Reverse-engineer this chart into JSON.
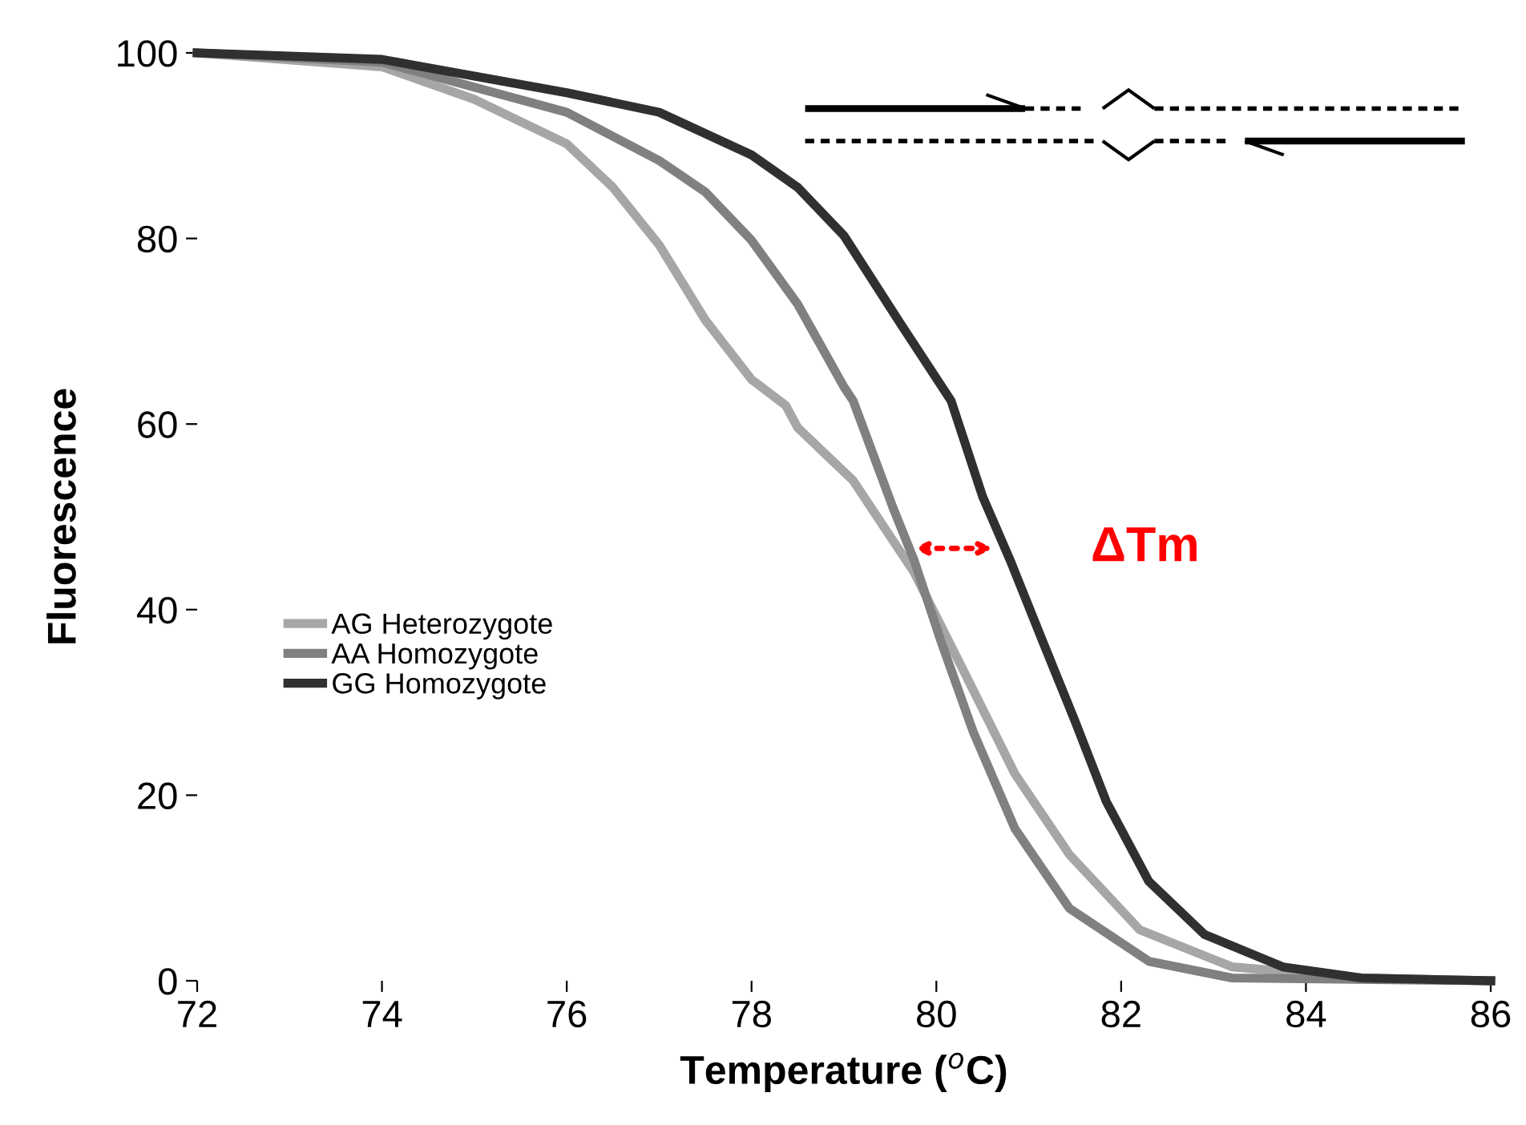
{
  "chart_data": {
    "type": "line",
    "xlabel": "Temperature ($^{o}$C)",
    "ylabel": "Fluorescence",
    "xlim": [
      72,
      86
    ],
    "ylim": [
      0,
      100
    ],
    "xticks": [
      72,
      74,
      76,
      78,
      80,
      82,
      84,
      86
    ],
    "yticks": [
      0,
      20,
      40,
      60,
      80,
      100
    ],
    "grid": false,
    "legend": "left",
    "marker": "none",
    "line_style": "solid",
    "annotations": [
      {
        "text": "ΔTm",
        "x": 80.66,
        "y": 46.6
      }
    ],
    "series": [
      {
        "name": "AG Heterozygote",
        "color": "#a6a6a6",
        "x": [
          72,
          74,
          75,
          76,
          76.5,
          77,
          77.5,
          78,
          78.37,
          78.5,
          79.1,
          79.76,
          80.28,
          80.85,
          81.44,
          82.2,
          83.2,
          84.6,
          86
        ],
        "values": [
          100,
          98.5,
          95,
          90.2,
          85.5,
          79.3,
          71.2,
          64.8,
          62,
          59.6,
          53.9,
          44,
          33.7,
          22.3,
          13.6,
          5.5,
          1.5,
          0.3,
          0
        ]
      },
      {
        "name": "AA Homozygote",
        "color": "#808080",
        "x": [
          72,
          74,
          76,
          77,
          77.5,
          78,
          78.5,
          79,
          79.1,
          79.53,
          79.76,
          80.05,
          80.4,
          80.85,
          81.44,
          82.3,
          83.2,
          86
        ],
        "values": [
          100,
          99,
          93.6,
          88.4,
          85,
          79.8,
          72.9,
          64,
          62.5,
          51,
          45.3,
          36.6,
          26.8,
          16.4,
          7.8,
          2.1,
          0.3,
          0
        ]
      },
      {
        "name": "GG Homozygote",
        "color": "#303030",
        "x": [
          72,
          74,
          76,
          77,
          78,
          78.5,
          79,
          79.6,
          80.16,
          80.5,
          80.8,
          81.15,
          81.5,
          81.84,
          82.3,
          82.9,
          83.75,
          84.6,
          86
        ],
        "values": [
          100,
          99.3,
          95.7,
          93.6,
          89,
          85.5,
          80.3,
          71,
          62.5,
          52.2,
          45.3,
          36.6,
          28,
          19.3,
          10.7,
          5,
          1.5,
          0.3,
          0
        ]
      }
    ]
  }
}
